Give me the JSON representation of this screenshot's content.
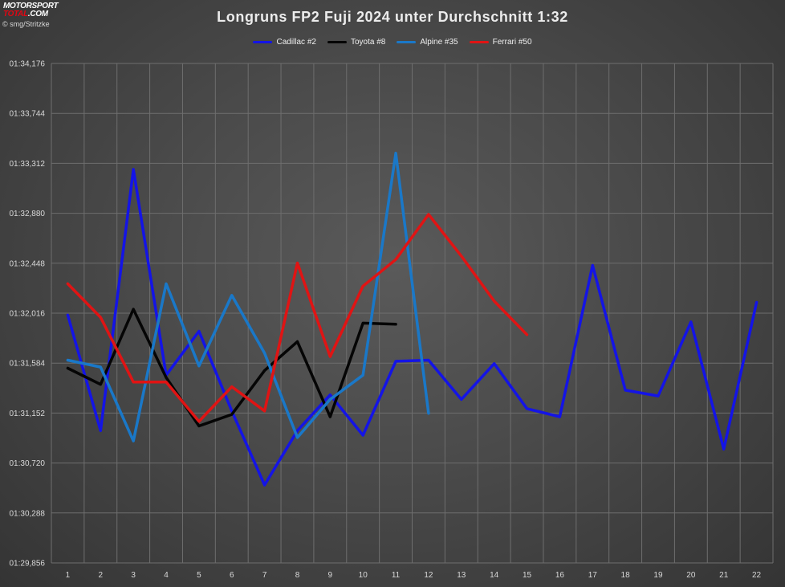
{
  "logo": {
    "line1": "MOTORSPORT",
    "line2": "TOTAL",
    "line2_suffix": ".COM"
  },
  "credit": "© smg/Stritzke",
  "chart_data": {
    "type": "line",
    "title": "Longruns  FP2 Fuji 2024 unter Durchschnitt  1:32",
    "xlabel": "",
    "ylabel": "",
    "legend_position": "top-center",
    "grid": true,
    "x": [
      1,
      2,
      3,
      4,
      5,
      6,
      7,
      8,
      9,
      10,
      11,
      12,
      13,
      14,
      15,
      16,
      17,
      18,
      19,
      20,
      21,
      22
    ],
    "y_tick_labels": [
      "01:29,856",
      "01:30,288",
      "01:30,720",
      "01:31,152",
      "01:31,584",
      "01:32,016",
      "01:32,448",
      "01:32,880",
      "01:33,312",
      "01:33,744",
      "01:34,176"
    ],
    "y_tick_values": [
      89.856,
      90.288,
      90.72,
      91.152,
      91.584,
      92.016,
      92.448,
      92.88,
      93.312,
      93.744,
      94.176
    ],
    "ylim": [
      89.856,
      94.176
    ],
    "series": [
      {
        "name": "Cadillac #2",
        "color": "#1414e6",
        "values": [
          92.0,
          91.0,
          93.26,
          91.48,
          91.86,
          91.17,
          90.53,
          91.0,
          91.31,
          90.96,
          91.6,
          91.61,
          91.27,
          91.58,
          91.19,
          91.12,
          92.43,
          91.35,
          91.3,
          91.94,
          90.84,
          92.11
        ]
      },
      {
        "name": "Toyota #8",
        "color": "#050505",
        "values": [
          91.54,
          91.4,
          92.05,
          91.46,
          91.04,
          91.14,
          91.52,
          91.77,
          91.12,
          91.93,
          91.92,
          null,
          null,
          null,
          null,
          null,
          null,
          null,
          null,
          null,
          null,
          null
        ]
      },
      {
        "name": "Alpine #35",
        "color": "#1a78c8",
        "values": [
          91.61,
          91.55,
          90.91,
          92.27,
          91.56,
          92.17,
          91.67,
          90.94,
          91.27,
          91.48,
          93.4,
          91.15,
          null,
          null,
          null,
          null,
          null,
          null,
          null,
          null,
          null,
          null
        ]
      },
      {
        "name": "Ferrari #50",
        "color": "#e01414",
        "values": [
          92.27,
          91.98,
          91.42,
          91.42,
          91.08,
          91.38,
          91.17,
          92.45,
          91.64,
          92.25,
          92.48,
          92.87,
          92.51,
          92.12,
          91.83,
          null,
          null,
          null,
          null,
          null,
          null,
          null
        ]
      }
    ]
  }
}
